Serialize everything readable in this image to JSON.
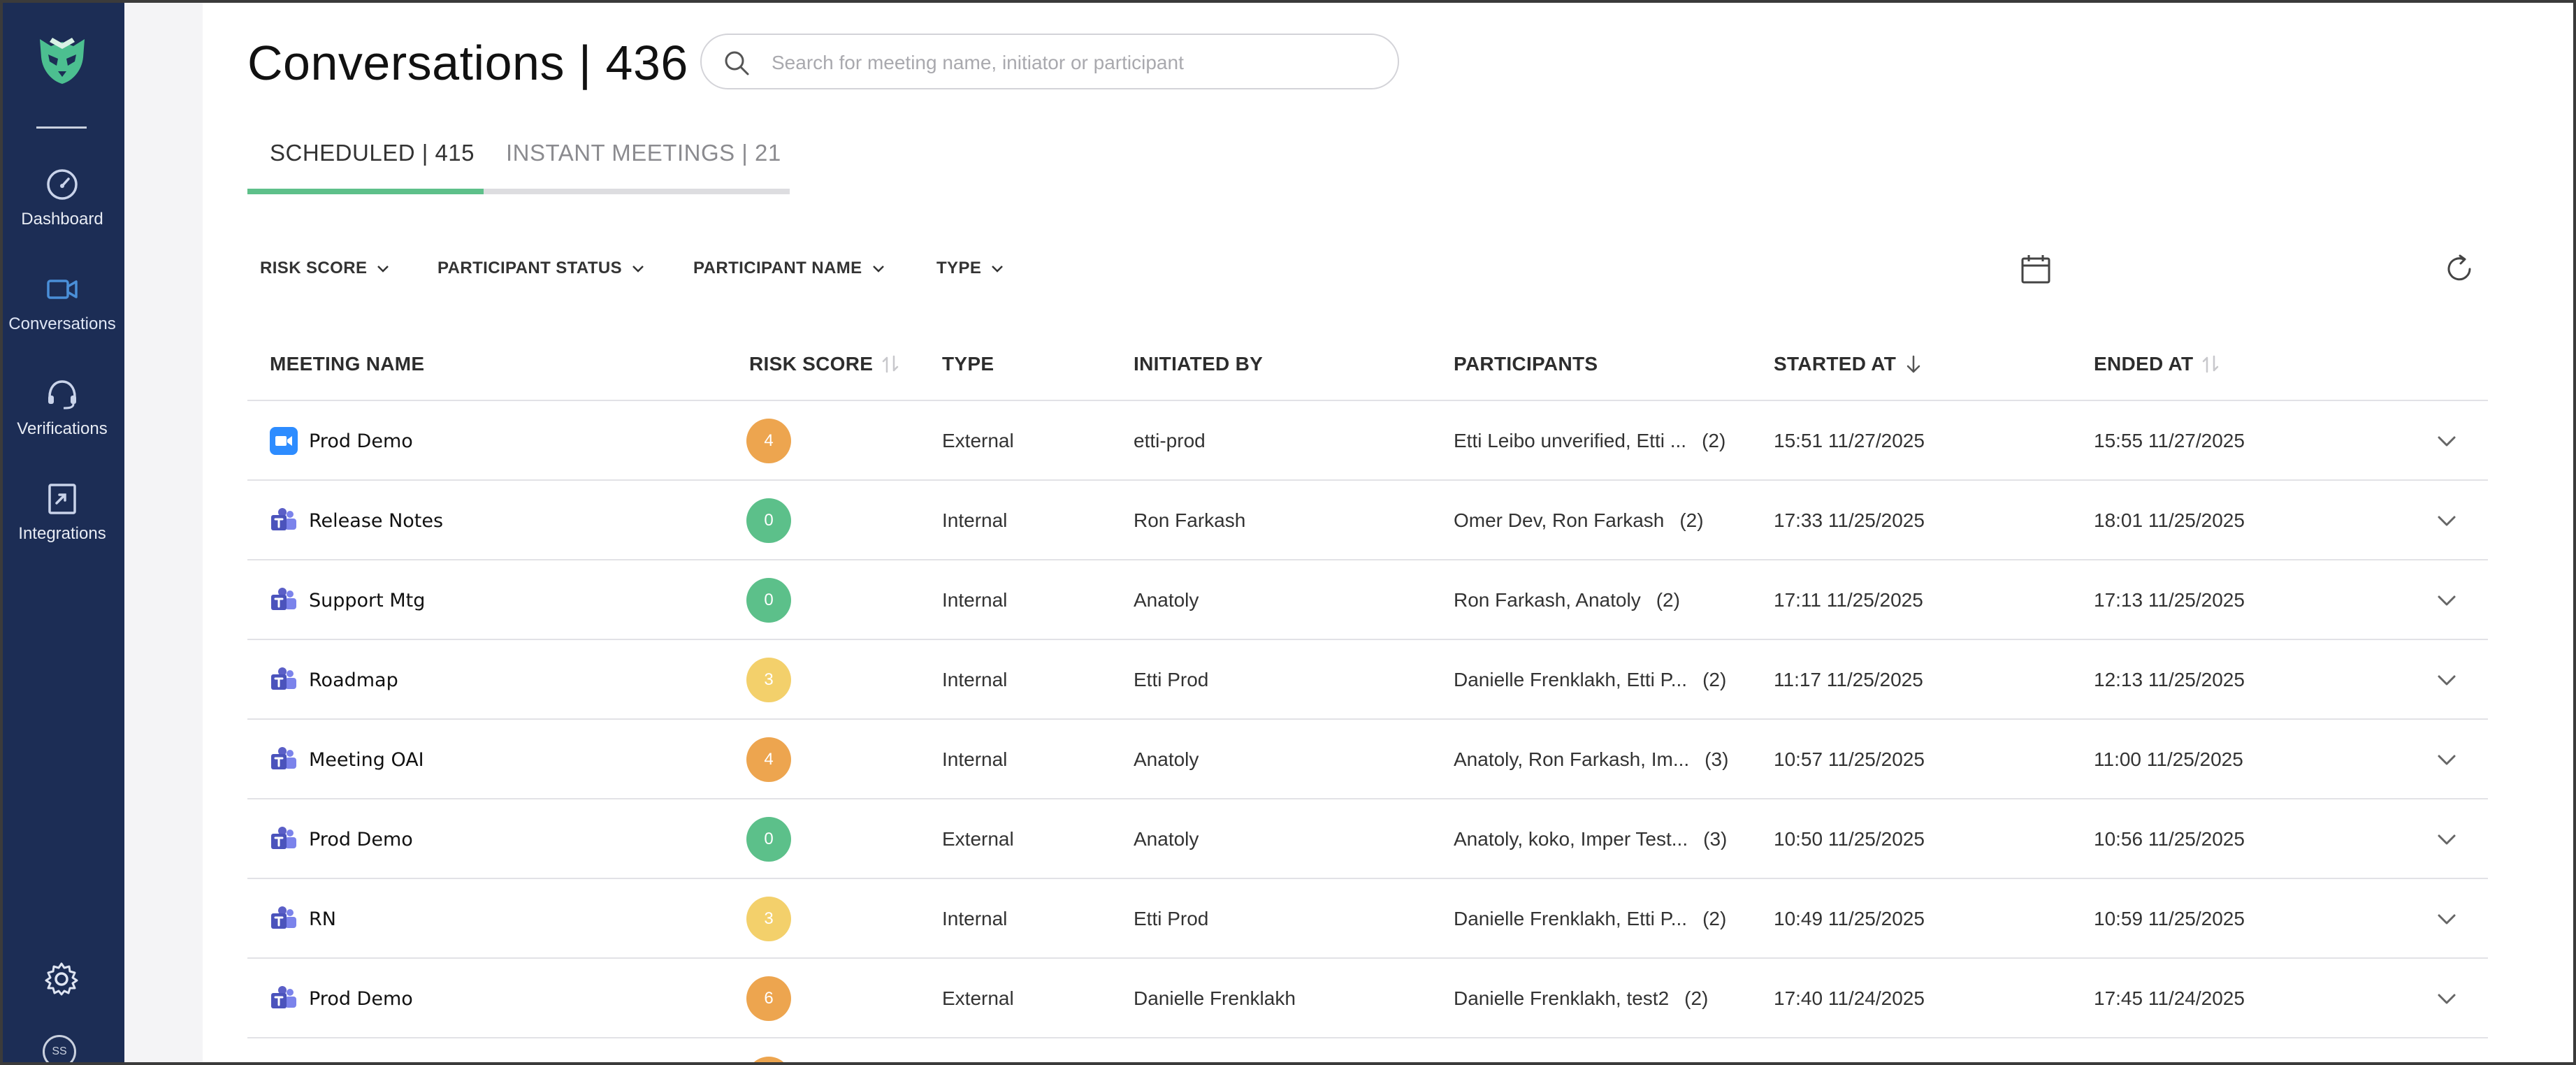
{
  "header": {
    "title": "Conversations | 436",
    "search_placeholder": "Search for meeting name, initiator or participant"
  },
  "sidebar": {
    "items": [
      {
        "label": "Dashboard",
        "icon": "dashboard-icon"
      },
      {
        "label": "Conversations",
        "icon": "video-camera-icon",
        "active": true
      },
      {
        "label": "Verifications",
        "icon": "headset-icon"
      },
      {
        "label": "Integrations",
        "icon": "integrations-icon"
      }
    ],
    "settings_icon": "gear-icon",
    "avatar_initials": "SS"
  },
  "tabs": [
    {
      "label": "SCHEDULED | 415",
      "active": true
    },
    {
      "label": "INSTANT MEETINGS | 21",
      "active": false
    }
  ],
  "filters": [
    "RISK SCORE",
    "PARTICIPANT STATUS",
    "PARTICIPANT NAME",
    "TYPE"
  ],
  "table": {
    "columns": [
      "MEETING NAME",
      "RISK SCORE",
      "TYPE",
      "INITIATED BY",
      "PARTICIPANTS",
      "STARTED AT",
      "ENDED AT"
    ],
    "rows": [
      {
        "platform": "zoom",
        "name": "Prod Demo",
        "risk": "4",
        "risk_color": "#eda54f",
        "type": "External",
        "initiated_by": "etti-prod",
        "participants": "Etti Leibo unverified, Etti ...",
        "participant_count": "(2)",
        "started": "15:51 11/27/2025",
        "ended": "15:55 11/27/2025"
      },
      {
        "platform": "teams",
        "name": "Release Notes",
        "risk": "0",
        "risk_color": "#5cc08a",
        "type": "Internal",
        "initiated_by": "Ron Farkash",
        "participants": "Omer Dev, Ron Farkash",
        "participant_count": "(2)",
        "started": "17:33 11/25/2025",
        "ended": "18:01 11/25/2025"
      },
      {
        "platform": "teams",
        "name": "Support Mtg",
        "risk": "0",
        "risk_color": "#5cc08a",
        "type": "Internal",
        "initiated_by": "Anatoly",
        "participants": "Ron Farkash, Anatoly",
        "participant_count": "(2)",
        "started": "17:11 11/25/2025",
        "ended": "17:13 11/25/2025"
      },
      {
        "platform": "teams",
        "name": "Roadmap",
        "risk": "3",
        "risk_color": "#f3d06b",
        "type": "Internal",
        "initiated_by": "Etti Prod",
        "participants": "Danielle Frenklakh, Etti P...",
        "participant_count": "(2)",
        "started": "11:17 11/25/2025",
        "ended": "12:13 11/25/2025"
      },
      {
        "platform": "teams",
        "name": "Meeting OAI",
        "risk": "4",
        "risk_color": "#eda54f",
        "type": "Internal",
        "initiated_by": "Anatoly",
        "participants": "Anatoly, Ron Farkash, Im...",
        "participant_count": "(3)",
        "started": "10:57 11/25/2025",
        "ended": "11:00 11/25/2025"
      },
      {
        "platform": "teams",
        "name": "Prod Demo",
        "risk": "0",
        "risk_color": "#5cc08a",
        "type": "External",
        "initiated_by": "Anatoly",
        "participants": "Anatoly, koko, Imper Test...",
        "participant_count": "(3)",
        "started": "10:50 11/25/2025",
        "ended": "10:56 11/25/2025"
      },
      {
        "platform": "teams",
        "name": "RN",
        "risk": "3",
        "risk_color": "#f3d06b",
        "type": "Internal",
        "initiated_by": "Etti Prod",
        "participants": "Danielle Frenklakh, Etti P...",
        "participant_count": "(2)",
        "started": "10:49 11/25/2025",
        "ended": "10:59 11/25/2025"
      },
      {
        "platform": "teams",
        "name": "Prod Demo",
        "risk": "6",
        "risk_color": "#eda54f",
        "type": "External",
        "initiated_by": "Danielle Frenklakh",
        "participants": "Danielle Frenklakh, test2",
        "participant_count": "(2)",
        "started": "17:40 11/24/2025",
        "ended": "17:45 11/24/2025"
      }
    ]
  },
  "colors": {
    "sidebar_bg": "#1c2d55",
    "accent_green": "#5ec08a",
    "risk_low": "#5cc08a",
    "risk_medium": "#f3d06b",
    "risk_high": "#eda54f",
    "teams_purple": "#5b5fc7",
    "zoom_blue": "#2d8cff"
  }
}
